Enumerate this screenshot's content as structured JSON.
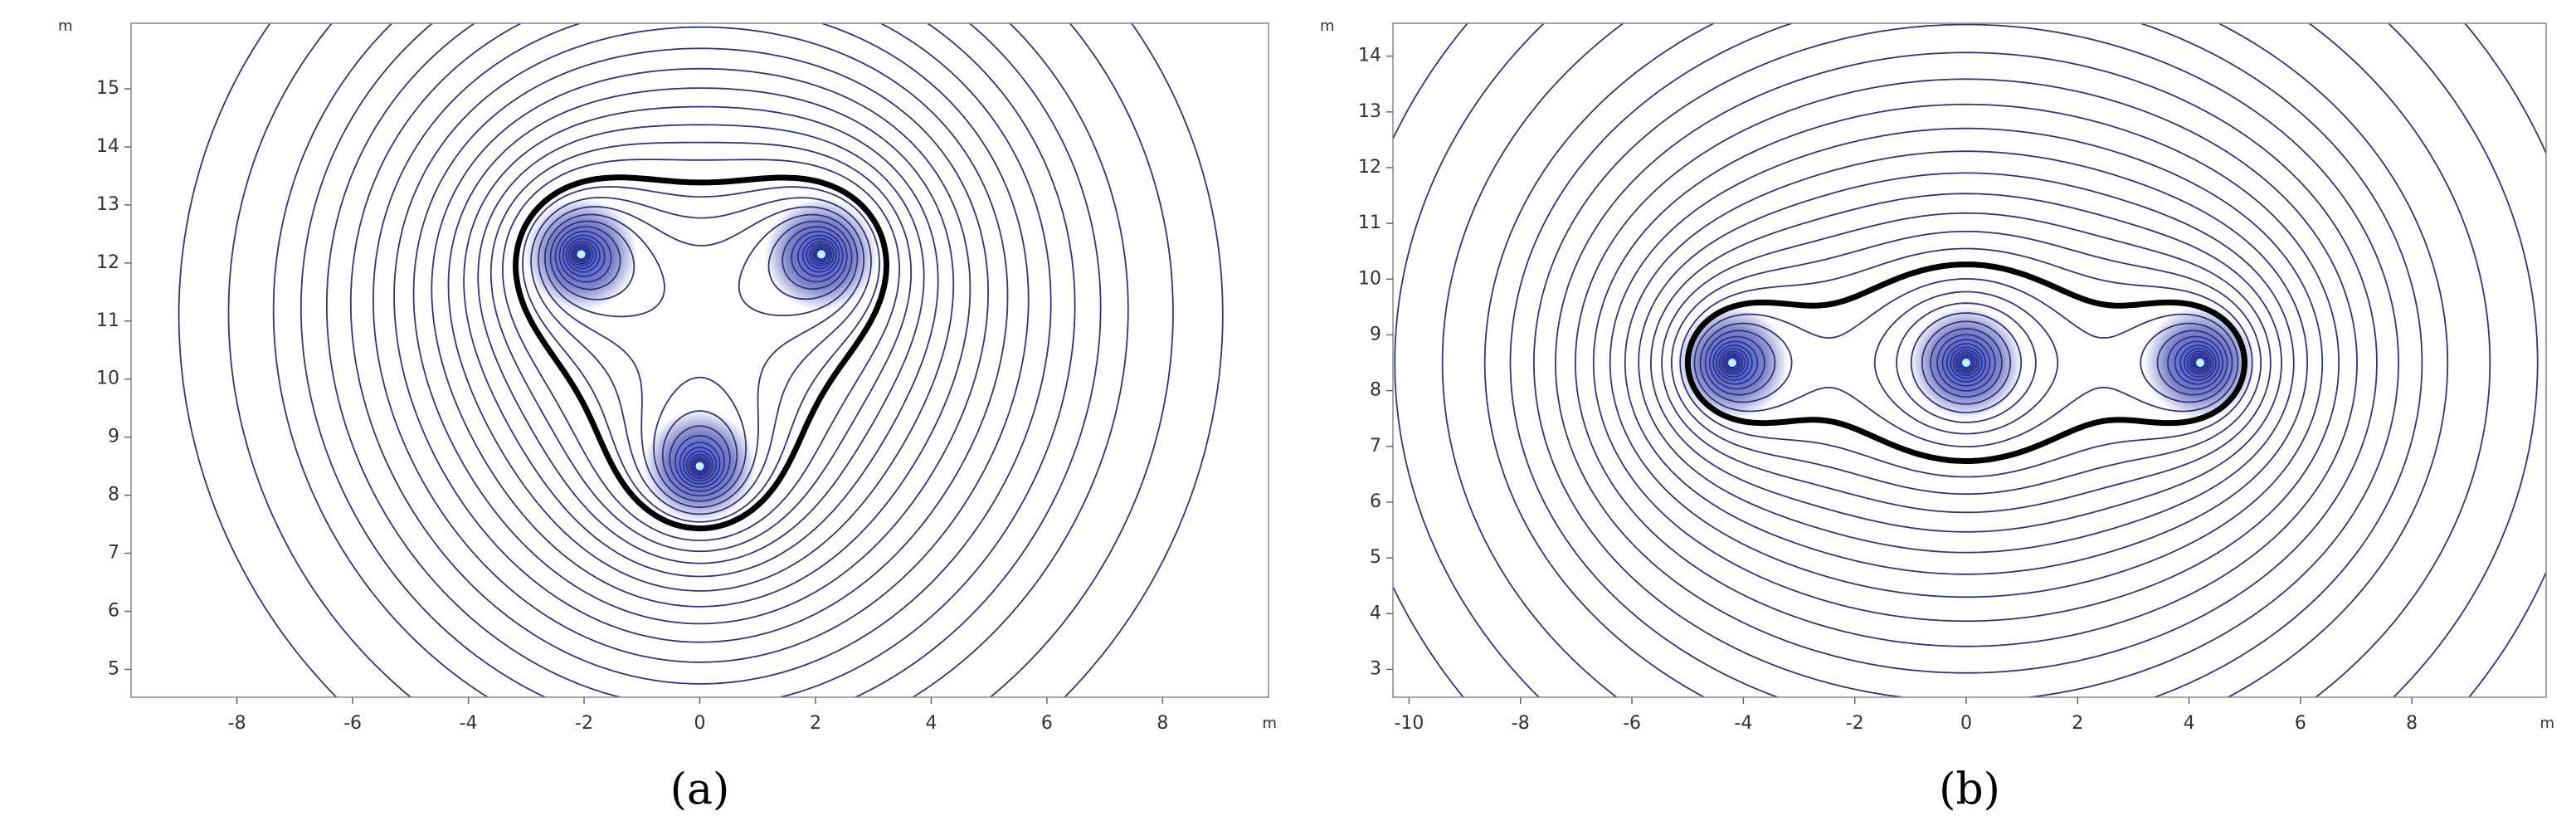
{
  "chart_data": [
    {
      "type": "contour",
      "panel_label": "(a)",
      "x_label": "m",
      "y_label": "m",
      "xlim": [
        -9.83,
        9.83
      ],
      "ylim": [
        4.52,
        16.13
      ],
      "xticks": [
        -8,
        -6,
        -4,
        -2,
        0,
        2,
        4,
        6,
        8
      ],
      "yticks": [
        5,
        6,
        7,
        8,
        9,
        10,
        11,
        12,
        13,
        14,
        15
      ],
      "sources": {
        "x": [
          -2.05,
          2.1,
          0
        ],
        "y": [
          12.15,
          12.15,
          8.5
        ]
      },
      "levels": [
        0.6,
        0.8,
        1.0,
        1.2,
        1.4,
        1.6,
        1.8,
        2.0,
        2.2,
        2.4,
        2.6,
        2.8,
        3.0,
        3.2,
        3.6,
        3.8,
        4.0,
        4.2,
        4.4,
        4.6,
        4.8,
        5.0,
        5.2,
        5.4,
        5.6,
        5.8,
        6.0,
        6.3,
        6.6
      ],
      "highlight_level": 3.35,
      "color": "#33337f",
      "highlight_color": "#000000",
      "source_color": "#1a33d6"
    },
    {
      "type": "contour",
      "panel_label": "(b)",
      "x_label": "m",
      "y_label": "m",
      "xlim": [
        -10.29,
        10.41
      ],
      "ylim": [
        2.5,
        14.59
      ],
      "xticks": [
        -10,
        -8,
        -6,
        -4,
        -2,
        0,
        2,
        4,
        6,
        8
      ],
      "yticks": [
        3,
        4,
        5,
        6,
        7,
        8,
        9,
        10,
        11,
        12,
        13,
        14
      ],
      "sources": {
        "x": [
          -4.2,
          0,
          4.2
        ],
        "y": [
          8.5,
          8.5,
          8.5
        ]
      },
      "levels": [
        0.8,
        1.0,
        1.2,
        1.4,
        1.6,
        1.8,
        2.0,
        2.2,
        2.4,
        2.6,
        2.8,
        3.0,
        3.2,
        3.4,
        3.8,
        4.0,
        4.2,
        4.4,
        4.6,
        4.8,
        5.0,
        5.2,
        5.4,
        5.6,
        5.8,
        6.0,
        6.2,
        6.5,
        6.8,
        7.1
      ],
      "highlight_level": 3.6,
      "color": "#33337f",
      "highlight_color": "#000000",
      "source_color": "#1a33d6"
    }
  ]
}
